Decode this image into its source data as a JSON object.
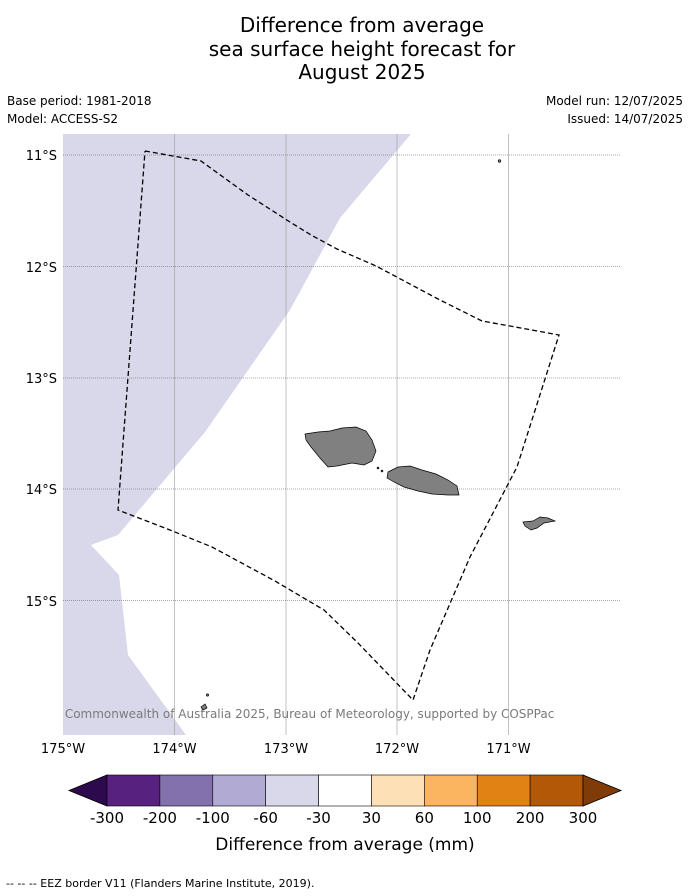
{
  "title": {
    "line1": "Difference from average",
    "line2": "sea surface height forecast for",
    "line3": "August 2025"
  },
  "info": {
    "base_period": "Base period: 1981-2018",
    "model": "Model: ACCESS-S2",
    "model_run": "Model run: 12/07/2025",
    "issued": "Issued: 14/07/2025"
  },
  "map": {
    "lat_labels": [
      "11°S",
      "12°S",
      "13°S",
      "14°S",
      "15°S"
    ],
    "lon_labels": [
      "175°W",
      "174°W",
      "173°W",
      "172°W",
      "171°W"
    ],
    "lon_range": [
      -175,
      -170
    ],
    "lat_range": [
      -16.2,
      -10.8
    ],
    "ocean_anomaly_bin": "-60 to -30",
    "land_color": "#808080",
    "eez_line": "dashed black",
    "copyright": "© Commonwealth of Australia 2025, Bureau of Meteorology, supported by COSPPac"
  },
  "colorbar": {
    "title": "Difference from average (mm)",
    "tick_labels": [
      "-300",
      "-200",
      "-100",
      "-60",
      "-30",
      "30",
      "60",
      "100",
      "200",
      "300"
    ],
    "colors": [
      "#2d0a4e",
      "#57227f",
      "#8271ad",
      "#b1aad2",
      "#d8d8ea",
      "#ffffff",
      "#fee0b6",
      "#fbb45f",
      "#e08214",
      "#b35806",
      "#7f3b08"
    ]
  },
  "footer": "--  --  -- EEZ border V11 (Flanders Marine Institute, 2019)."
}
